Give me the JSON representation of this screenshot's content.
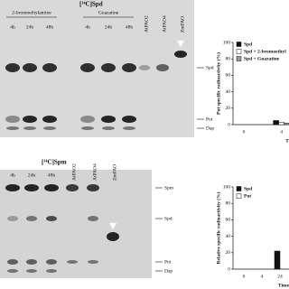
{
  "gels": [
    {
      "title": "[¹⁴C]Spd",
      "groups": [
        "2-bromoethylamine",
        "Guazatine"
      ],
      "lanes": [
        "4h",
        "24h",
        "48h",
        "4h",
        "24h",
        "48h",
        "AtPAO2",
        "AtPAO4",
        "ZmPAO"
      ],
      "bands": [
        "Spd",
        "Put",
        "Dap"
      ]
    },
    {
      "title": "[¹⁴C]Spm",
      "lanes": [
        "4h",
        "24h",
        "48h",
        "AtPAO2",
        "AtPAO4",
        "ZmPAO"
      ],
      "bands": [
        "Spm",
        "Spd",
        "Put",
        "Dap"
      ]
    }
  ],
  "charts": [
    {
      "type": "bar",
      "ylabel": "Put specific radioactivity (%)",
      "xlabel": "T",
      "categories": [
        "0",
        "4"
      ],
      "ylim": [
        0,
        100
      ],
      "yticks": [
        0,
        20,
        40,
        60,
        80,
        100
      ],
      "series": [
        {
          "name": "Spd",
          "color": "#111111",
          "values": [
            0,
            5
          ]
        },
        {
          "name": "Spd + 2-bromoethyl",
          "color": "#ffffff",
          "values": [
            0,
            3
          ]
        },
        {
          "name": "Spd + Guazatine",
          "color": "#999999",
          "values": [
            0,
            2
          ]
        }
      ]
    },
    {
      "type": "bar",
      "ylabel": "Relative specific radioactivity (%)",
      "xlabel": "Time (h)",
      "categories": [
        "0",
        "4",
        "24"
      ],
      "ylim": [
        0,
        100
      ],
      "yticks": [
        0,
        20,
        40,
        60,
        80,
        100
      ],
      "series": [
        {
          "name": "Spd",
          "color": "#111111",
          "values": [
            0,
            0,
            22
          ]
        },
        {
          "name": "Put",
          "color": "#ffffff",
          "values": [
            0,
            0,
            0
          ]
        }
      ]
    }
  ]
}
